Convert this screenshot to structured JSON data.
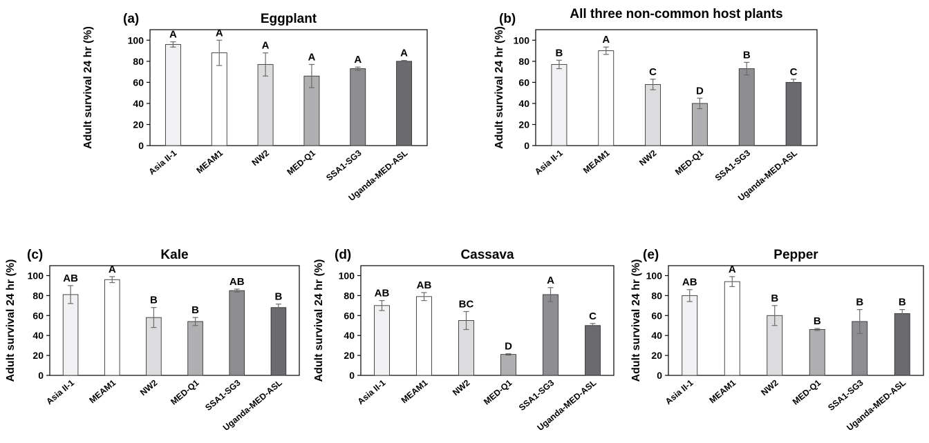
{
  "figure": {
    "colors": [
      "#f1f1f3",
      "#ffffff",
      "#dcdcde",
      "#b0b0b2",
      "#8e8e92",
      "#6a6a6f"
    ]
  },
  "chart_data": [
    {
      "type": "bar",
      "panel_label": "(a)",
      "title": "Eggplant",
      "ylabel": "Adult survival  24 hr (%)",
      "ylim": [
        0,
        110
      ],
      "yticks": [
        0,
        20,
        40,
        60,
        80,
        100
      ],
      "categories": [
        "Asia II-1",
        "MEAM1",
        "NW2",
        "MED-Q1",
        "SSA1-SG3",
        "Uganda-MED-ASL"
      ],
      "values": [
        96,
        88,
        77,
        66,
        73,
        80
      ],
      "errors": [
        2.5,
        12,
        11,
        11,
        1.5,
        0.8
      ],
      "significance": [
        "A",
        "A",
        "A",
        "A",
        "A",
        "A"
      ]
    },
    {
      "type": "bar",
      "panel_label": "(b)",
      "title": "All three non-common host plants",
      "ylabel": "Adult survival  24 hr (%)",
      "ylim": [
        0,
        110
      ],
      "yticks": [
        0,
        20,
        40,
        60,
        80,
        100
      ],
      "categories": [
        "Asia II-1",
        "MEAM1",
        "NW2",
        "MED-Q1",
        "SSA1-SG3",
        "Uganda-MED-ASL"
      ],
      "values": [
        77,
        90,
        58,
        40,
        73,
        60
      ],
      "errors": [
        4,
        3.5,
        5,
        5,
        6,
        3
      ],
      "significance": [
        "B",
        "A",
        "C",
        "D",
        "B",
        "C"
      ]
    },
    {
      "type": "bar",
      "panel_label": "(c)",
      "title": "Kale",
      "ylabel": "Adult survival  24 hr (%)",
      "ylim": [
        0,
        110
      ],
      "yticks": [
        0,
        20,
        40,
        60,
        80,
        100
      ],
      "categories": [
        "Asia II-1",
        "MEAM1",
        "NW2",
        "MED-Q1",
        "SSA1-SG3",
        "Uganda-MED-ASL"
      ],
      "values": [
        81,
        96,
        58,
        54,
        85,
        68
      ],
      "errors": [
        9,
        3,
        10,
        4,
        1.5,
        3.5
      ],
      "significance": [
        "AB",
        "A",
        "B",
        "B",
        "AB",
        "B"
      ]
    },
    {
      "type": "bar",
      "panel_label": "(d)",
      "title": "Cassava",
      "ylabel": "Adult survival  24 hr (%)",
      "ylim": [
        0,
        110
      ],
      "yticks": [
        0,
        20,
        40,
        60,
        80,
        100
      ],
      "categories": [
        "Asia II-1",
        "MEAM1",
        "NW2",
        "MED-Q1",
        "SSA1-SG3",
        "Uganda-MED-ASL"
      ],
      "values": [
        70,
        79,
        55,
        21,
        81,
        50
      ],
      "errors": [
        5,
        4,
        9,
        0.7,
        7,
        2
      ],
      "significance": [
        "AB",
        "AB",
        "BC",
        "D",
        "A",
        "C"
      ]
    },
    {
      "type": "bar",
      "panel_label": "(e)",
      "title": "Pepper",
      "ylabel": "Adult survival  24 hr (%)",
      "ylim": [
        0,
        110
      ],
      "yticks": [
        0,
        20,
        40,
        60,
        80,
        100
      ],
      "categories": [
        "Asia II-1",
        "MEAM1",
        "NW2",
        "MED-Q1",
        "SSA1-SG3",
        "Uganda-MED-ASL"
      ],
      "values": [
        80,
        94,
        60,
        46,
        54,
        62
      ],
      "errors": [
        6,
        5,
        10,
        1,
        12,
        4
      ],
      "significance": [
        "AB",
        "A",
        "B",
        "B",
        "B",
        "B"
      ]
    }
  ]
}
